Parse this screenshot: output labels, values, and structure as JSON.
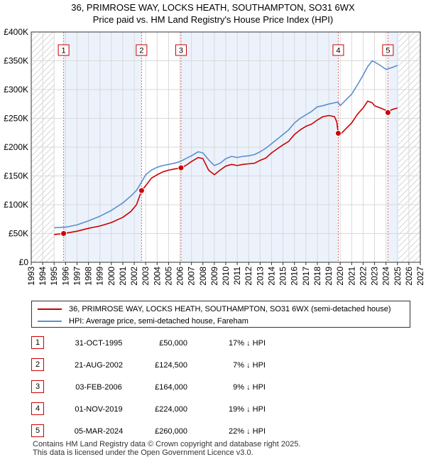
{
  "title_line1": "36, PRIMROSE WAY, LOCKS HEATH, SOUTHAMPTON, SO31 6WX",
  "title_line2": "Price paid vs. HM Land Registry's House Price Index (HPI)",
  "colors": {
    "property": "#cc0000",
    "hpi": "#5b8fd0",
    "marker_line": "#dd6666",
    "hatch": "#bbbbbb",
    "grid": "#d9d9d9",
    "shade": "#dce8f8"
  },
  "chart_data": {
    "type": "line",
    "title": "36, PRIMROSE WAY, LOCKS HEATH, SOUTHAMPTON, SO31 6WX — Price paid vs. HM Land Registry's House Price Index (HPI)",
    "xlabel": "",
    "ylabel": "",
    "xlim": [
      1993,
      2027
    ],
    "ylim": [
      0,
      400000
    ],
    "data_start": 1995.0,
    "data_end": 2025.1,
    "y_ticks": [
      {
        "v": 0,
        "label": "£0"
      },
      {
        "v": 50000,
        "label": "£50K"
      },
      {
        "v": 100000,
        "label": "£100K"
      },
      {
        "v": 150000,
        "label": "£150K"
      },
      {
        "v": 200000,
        "label": "£200K"
      },
      {
        "v": 250000,
        "label": "£250K"
      },
      {
        "v": 300000,
        "label": "£300K"
      },
      {
        "v": 350000,
        "label": "£350K"
      },
      {
        "v": 400000,
        "label": "£400K"
      }
    ],
    "x_ticks": [
      "1993",
      "1994",
      "1995",
      "1996",
      "1997",
      "1998",
      "1999",
      "2000",
      "2001",
      "2002",
      "2003",
      "2004",
      "2005",
      "2006",
      "2007",
      "2008",
      "2009",
      "2010",
      "2011",
      "2012",
      "2013",
      "2014",
      "2015",
      "2016",
      "2017",
      "2018",
      "2019",
      "2020",
      "2021",
      "2022",
      "2023",
      "2024",
      "2025",
      "2026",
      "2027"
    ],
    "grid": true,
    "series": [
      {
        "name": "HPI: Average price, semi-detached house, Fareham",
        "color": "#5b8fd0",
        "x": [
          1995.0,
          1996.0,
          1997.0,
          1998.0,
          1999.0,
          2000.0,
          2001.0,
          2001.7,
          2002.2,
          2002.6,
          2003.0,
          2003.5,
          2004.0,
          2004.5,
          2005.0,
          2005.5,
          2006.0,
          2006.5,
          2007.0,
          2007.6,
          2008.0,
          2008.5,
          2009.0,
          2009.5,
          2010.0,
          2010.5,
          2011.0,
          2011.5,
          2012.0,
          2012.5,
          2013.0,
          2013.5,
          2014.0,
          2014.5,
          2015.0,
          2015.5,
          2016.0,
          2016.5,
          2017.0,
          2017.5,
          2018.0,
          2018.5,
          2019.0,
          2019.5,
          2019.8,
          2020.0,
          2020.5,
          2021.0,
          2021.5,
          2022.0,
          2022.4,
          2022.8,
          2023.0,
          2023.5,
          2024.0,
          2024.5,
          2025.0
        ],
        "values": [
          60000,
          61000,
          65000,
          72000,
          80000,
          90000,
          103000,
          115000,
          125000,
          138000,
          152000,
          160000,
          165000,
          168000,
          170000,
          172000,
          175000,
          180000,
          185000,
          192000,
          190000,
          178000,
          168000,
          172000,
          180000,
          184000,
          182000,
          184000,
          185000,
          187000,
          192000,
          198000,
          206000,
          214000,
          222000,
          230000,
          242000,
          250000,
          256000,
          262000,
          270000,
          272000,
          275000,
          277000,
          278000,
          272000,
          282000,
          292000,
          308000,
          325000,
          340000,
          350000,
          348000,
          342000,
          335000,
          338000,
          342000
        ]
      },
      {
        "name": "36, PRIMROSE WAY, LOCKS HEATH, SOUTHAMPTON, SO31 6WX (semi-detached house)",
        "color": "#cc0000",
        "x": [
          1995.0,
          1995.83,
          1996.0,
          1997.0,
          1998.0,
          1999.0,
          2000.0,
          2001.0,
          2001.7,
          2002.2,
          2002.64,
          2003.0,
          2003.5,
          2004.0,
          2004.5,
          2005.0,
          2005.5,
          2006.09,
          2006.5,
          2007.0,
          2007.6,
          2008.0,
          2008.5,
          2009.0,
          2009.5,
          2010.0,
          2010.5,
          2011.0,
          2011.5,
          2012.0,
          2012.5,
          2013.0,
          2013.5,
          2014.0,
          2014.5,
          2015.0,
          2015.5,
          2016.0,
          2016.5,
          2017.0,
          2017.5,
          2018.0,
          2018.5,
          2019.0,
          2019.5,
          2019.7,
          2019.83,
          2020.0,
          2020.5,
          2021.0,
          2021.5,
          2022.0,
          2022.4,
          2022.8,
          2023.0,
          2023.5,
          2024.0,
          2024.17,
          2024.5,
          2025.0
        ],
        "values": [
          48000,
          50000,
          50500,
          54000,
          59000,
          63000,
          69000,
          78000,
          88000,
          100000,
          124500,
          133000,
          146000,
          152000,
          157000,
          160000,
          162000,
          164000,
          168000,
          175000,
          182000,
          180000,
          160000,
          152000,
          160000,
          167000,
          170000,
          168000,
          170000,
          171000,
          172000,
          177000,
          181000,
          190000,
          197000,
          204000,
          210000,
          222000,
          230000,
          236000,
          240000,
          247000,
          253000,
          255000,
          253000,
          244000,
          224000,
          222000,
          232000,
          242000,
          257000,
          268000,
          280000,
          277000,
          272000,
          268000,
          264000,
          260000,
          265000,
          268000
        ]
      }
    ],
    "transactions": [
      {
        "n": "1",
        "x": 1995.83,
        "value": 50000,
        "date": "31-OCT-1995",
        "price": "£50,000",
        "hpi": "17% ↓ HPI"
      },
      {
        "n": "2",
        "x": 2002.64,
        "value": 124500,
        "date": "21-AUG-2002",
        "price": "£124,500",
        "hpi": "7% ↓ HPI"
      },
      {
        "n": "3",
        "x": 2006.09,
        "value": 164000,
        "date": "03-FEB-2006",
        "price": "£164,000",
        "hpi": "9% ↓ HPI"
      },
      {
        "n": "4",
        "x": 2019.83,
        "value": 224000,
        "date": "01-NOV-2019",
        "price": "£224,000",
        "hpi": "19% ↓ HPI"
      },
      {
        "n": "5",
        "x": 2024.17,
        "value": 260000,
        "date": "05-MAR-2024",
        "price": "£260,000",
        "hpi": "22% ↓ HPI"
      }
    ]
  },
  "legend": {
    "property_label": "36, PRIMROSE WAY, LOCKS HEATH, SOUTHAMPTON, SO31 6WX (semi-detached house)",
    "hpi_label": "HPI: Average price, semi-detached house, Fareham"
  },
  "footer_line1": "Contains HM Land Registry data © Crown copyright and database right 2025.",
  "footer_line2": "This data is licensed under the Open Government Licence v3.0."
}
